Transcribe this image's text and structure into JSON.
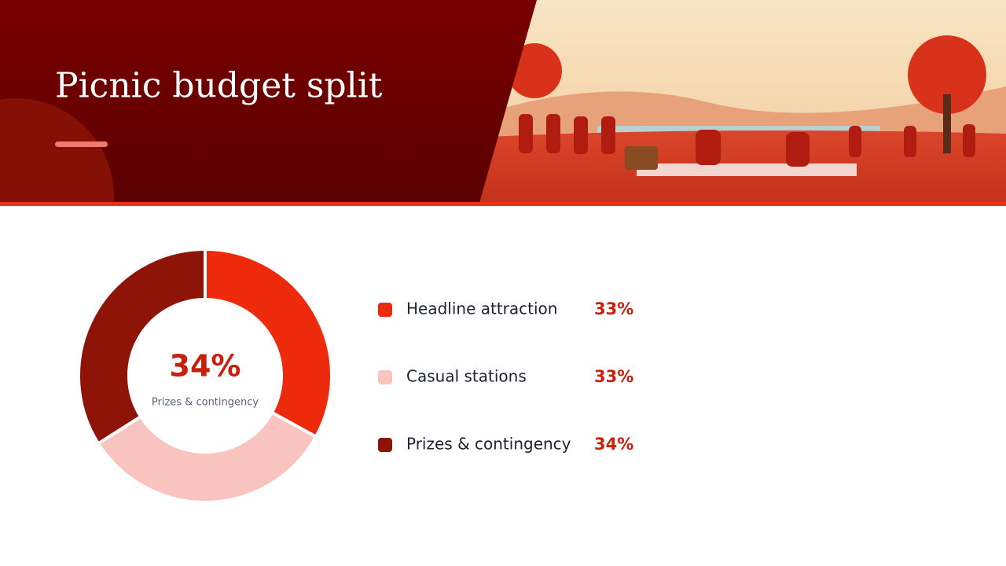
{
  "chart_data": {
    "type": "pie",
    "title": "Picnic budget split",
    "categories": [
      "Headline attraction",
      "Casual stations",
      "Prizes & contingency"
    ],
    "values": [
      33,
      33,
      34
    ],
    "value_labels": [
      "33%",
      "33%",
      "34%"
    ],
    "colors": [
      "#ee2a0c",
      "#f9c4c0",
      "#8f1408"
    ],
    "donut": true,
    "highlight": 2
  }
}
